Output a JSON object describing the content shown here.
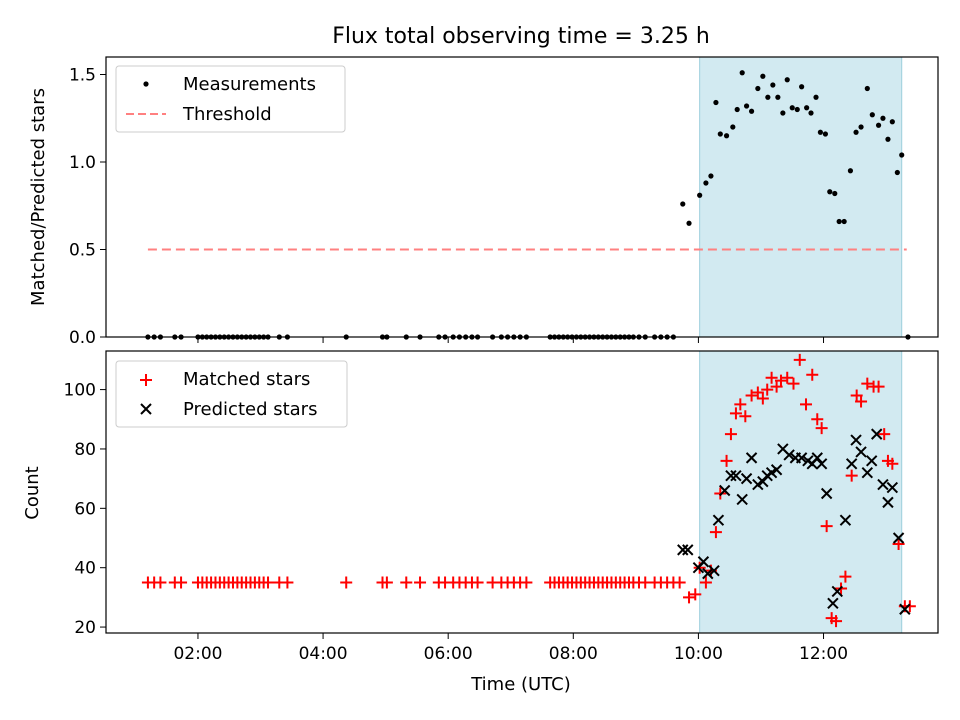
{
  "figure": {
    "title": "Flux total observing time = 3.25 h"
  },
  "chart_data": [
    {
      "type": "scatter",
      "panel": "top",
      "ylabel": "Matched/Predicted stars",
      "xlabel": "",
      "xlim": [
        0.53,
        13.83
      ],
      "ylim": [
        0,
        1.6
      ],
      "yticks": [
        0.0,
        0.5,
        1.0,
        1.5
      ],
      "ytick_labels": [
        "0.0",
        "0.5",
        "1.0",
        "1.5"
      ],
      "shaded_span": {
        "start": 10.02,
        "end": 13.25,
        "color": "#add8e6"
      },
      "legend": {
        "placement": "upper left",
        "entries": [
          "Measurements",
          "Threshold"
        ]
      },
      "threshold": {
        "name": "Threshold",
        "y": 0.5,
        "x_start": 1.2,
        "x_end": 13.33,
        "color": "#ff8080",
        "style": "dashed"
      },
      "series": [
        {
          "name": "Measurements",
          "marker": "dot",
          "color": "#000000",
          "points": [
            [
              1.2,
              0
            ],
            [
              1.3,
              0
            ],
            [
              1.4,
              0
            ],
            [
              1.63,
              0
            ],
            [
              1.73,
              0
            ],
            [
              2.0,
              0
            ],
            [
              2.07,
              0
            ],
            [
              2.14,
              0
            ],
            [
              2.21,
              0
            ],
            [
              2.28,
              0
            ],
            [
              2.35,
              0
            ],
            [
              2.42,
              0
            ],
            [
              2.49,
              0
            ],
            [
              2.56,
              0
            ],
            [
              2.63,
              0
            ],
            [
              2.7,
              0
            ],
            [
              2.77,
              0
            ],
            [
              2.84,
              0
            ],
            [
              2.91,
              0
            ],
            [
              2.98,
              0
            ],
            [
              3.05,
              0
            ],
            [
              3.12,
              0
            ],
            [
              3.3,
              0
            ],
            [
              3.43,
              0
            ],
            [
              4.37,
              0
            ],
            [
              4.95,
              0
            ],
            [
              5.02,
              0
            ],
            [
              5.33,
              0
            ],
            [
              5.55,
              0
            ],
            [
              5.85,
              0
            ],
            [
              5.95,
              0
            ],
            [
              6.08,
              0
            ],
            [
              6.18,
              0
            ],
            [
              6.28,
              0
            ],
            [
              6.38,
              0
            ],
            [
              6.47,
              0
            ],
            [
              6.71,
              0
            ],
            [
              6.85,
              0
            ],
            [
              6.95,
              0
            ],
            [
              7.05,
              0
            ],
            [
              7.15,
              0
            ],
            [
              7.25,
              0
            ],
            [
              7.63,
              0
            ],
            [
              7.7,
              0
            ],
            [
              7.77,
              0
            ],
            [
              7.84,
              0
            ],
            [
              7.91,
              0
            ],
            [
              7.98,
              0
            ],
            [
              8.05,
              0
            ],
            [
              8.12,
              0
            ],
            [
              8.19,
              0
            ],
            [
              8.26,
              0
            ],
            [
              8.33,
              0
            ],
            [
              8.4,
              0
            ],
            [
              8.47,
              0
            ],
            [
              8.54,
              0
            ],
            [
              8.61,
              0
            ],
            [
              8.68,
              0
            ],
            [
              8.75,
              0
            ],
            [
              8.82,
              0
            ],
            [
              8.89,
              0
            ],
            [
              8.96,
              0
            ],
            [
              9.05,
              0
            ],
            [
              9.15,
              0
            ],
            [
              9.3,
              0
            ],
            [
              9.4,
              0
            ],
            [
              9.5,
              0
            ],
            [
              9.6,
              0
            ],
            [
              9.75,
              0.76
            ],
            [
              9.85,
              0.65
            ],
            [
              10.02,
              0.81
            ],
            [
              10.12,
              0.88
            ],
            [
              10.2,
              0.92
            ],
            [
              10.28,
              1.34
            ],
            [
              10.35,
              1.16
            ],
            [
              10.45,
              1.15
            ],
            [
              10.55,
              1.2
            ],
            [
              10.62,
              1.3
            ],
            [
              10.7,
              1.51
            ],
            [
              10.77,
              1.32
            ],
            [
              10.85,
              1.29
            ],
            [
              10.95,
              1.42
            ],
            [
              11.03,
              1.49
            ],
            [
              11.11,
              1.37
            ],
            [
              11.19,
              1.44
            ],
            [
              11.27,
              1.37
            ],
            [
              11.35,
              1.28
            ],
            [
              11.42,
              1.47
            ],
            [
              11.5,
              1.31
            ],
            [
              11.58,
              1.3
            ],
            [
              11.65,
              1.43
            ],
            [
              11.73,
              1.31
            ],
            [
              11.8,
              1.28
            ],
            [
              11.88,
              1.37
            ],
            [
              11.95,
              1.17
            ],
            [
              12.03,
              1.16
            ],
            [
              12.1,
              0.83
            ],
            [
              12.18,
              0.82
            ],
            [
              12.25,
              0.66
            ],
            [
              12.33,
              0.66
            ],
            [
              12.43,
              0.95
            ],
            [
              12.52,
              1.17
            ],
            [
              12.6,
              1.2
            ],
            [
              12.7,
              1.42
            ],
            [
              12.78,
              1.27
            ],
            [
              12.88,
              1.21
            ],
            [
              12.95,
              1.25
            ],
            [
              13.03,
              1.13
            ],
            [
              13.1,
              1.23
            ],
            [
              13.18,
              0.94
            ],
            [
              13.25,
              1.04
            ],
            [
              13.35,
              0
            ]
          ]
        }
      ]
    },
    {
      "type": "scatter",
      "panel": "bottom",
      "ylabel": "Count",
      "xlabel": "Time (UTC)",
      "xlim": [
        0.53,
        13.83
      ],
      "ylim": [
        18,
        113
      ],
      "yticks": [
        20,
        40,
        60,
        80,
        100
      ],
      "ytick_labels": [
        "20",
        "40",
        "60",
        "80",
        "100"
      ],
      "xticks": [
        2,
        4,
        6,
        8,
        10,
        12
      ],
      "xtick_labels": [
        "02:00",
        "04:00",
        "06:00",
        "08:00",
        "10:00",
        "12:00"
      ],
      "shaded_span": {
        "start": 10.02,
        "end": 13.25,
        "color": "#add8e6"
      },
      "legend": {
        "placement": "upper left",
        "entries": [
          "Matched stars",
          "Predicted stars"
        ]
      },
      "series": [
        {
          "name": "Matched stars",
          "marker": "plus",
          "color": "#ff0000",
          "points": [
            [
              1.2,
              35
            ],
            [
              1.3,
              35
            ],
            [
              1.4,
              35
            ],
            [
              1.63,
              35
            ],
            [
              1.73,
              35
            ],
            [
              2.0,
              35
            ],
            [
              2.07,
              35
            ],
            [
              2.14,
              35
            ],
            [
              2.21,
              35
            ],
            [
              2.28,
              35
            ],
            [
              2.35,
              35
            ],
            [
              2.42,
              35
            ],
            [
              2.49,
              35
            ],
            [
              2.56,
              35
            ],
            [
              2.63,
              35
            ],
            [
              2.7,
              35
            ],
            [
              2.77,
              35
            ],
            [
              2.84,
              35
            ],
            [
              2.91,
              35
            ],
            [
              2.98,
              35
            ],
            [
              3.05,
              35
            ],
            [
              3.12,
              35
            ],
            [
              3.3,
              35
            ],
            [
              3.43,
              35
            ],
            [
              4.37,
              35
            ],
            [
              4.95,
              35
            ],
            [
              5.02,
              35
            ],
            [
              5.33,
              35
            ],
            [
              5.55,
              35
            ],
            [
              5.85,
              35
            ],
            [
              5.95,
              35
            ],
            [
              6.08,
              35
            ],
            [
              6.18,
              35
            ],
            [
              6.28,
              35
            ],
            [
              6.38,
              35
            ],
            [
              6.47,
              35
            ],
            [
              6.71,
              35
            ],
            [
              6.85,
              35
            ],
            [
              6.95,
              35
            ],
            [
              7.05,
              35
            ],
            [
              7.15,
              35
            ],
            [
              7.25,
              35
            ],
            [
              7.63,
              35
            ],
            [
              7.7,
              35
            ],
            [
              7.77,
              35
            ],
            [
              7.84,
              35
            ],
            [
              7.91,
              35
            ],
            [
              7.98,
              35
            ],
            [
              8.05,
              35
            ],
            [
              8.12,
              35
            ],
            [
              8.19,
              35
            ],
            [
              8.26,
              35
            ],
            [
              8.33,
              35
            ],
            [
              8.4,
              35
            ],
            [
              8.47,
              35
            ],
            [
              8.54,
              35
            ],
            [
              8.61,
              35
            ],
            [
              8.68,
              35
            ],
            [
              8.75,
              35
            ],
            [
              8.82,
              35
            ],
            [
              8.89,
              35
            ],
            [
              8.96,
              35
            ],
            [
              9.05,
              35
            ],
            [
              9.15,
              35
            ],
            [
              9.3,
              35
            ],
            [
              9.4,
              35
            ],
            [
              9.5,
              35
            ],
            [
              9.6,
              35
            ],
            [
              9.7,
              35
            ],
            [
              9.85,
              30
            ],
            [
              9.95,
              31
            ],
            [
              10.02,
              40
            ],
            [
              10.12,
              35
            ],
            [
              10.2,
              39
            ],
            [
              10.28,
              52
            ],
            [
              10.35,
              65
            ],
            [
              10.45,
              76
            ],
            [
              10.52,
              85
            ],
            [
              10.6,
              92
            ],
            [
              10.67,
              95
            ],
            [
              10.75,
              91
            ],
            [
              10.85,
              98
            ],
            [
              10.95,
              99
            ],
            [
              11.03,
              97
            ],
            [
              11.1,
              100
            ],
            [
              11.17,
              104
            ],
            [
              11.25,
              101
            ],
            [
              11.32,
              103
            ],
            [
              11.42,
              104
            ],
            [
              11.52,
              102
            ],
            [
              11.62,
              110
            ],
            [
              11.72,
              95
            ],
            [
              11.82,
              105
            ],
            [
              11.9,
              90
            ],
            [
              11.97,
              87
            ],
            [
              12.05,
              54
            ],
            [
              12.13,
              23
            ],
            [
              12.2,
              22
            ],
            [
              12.28,
              33
            ],
            [
              12.35,
              37
            ],
            [
              12.45,
              71
            ],
            [
              12.53,
              98
            ],
            [
              12.6,
              96
            ],
            [
              12.7,
              102
            ],
            [
              12.8,
              101
            ],
            [
              12.88,
              101
            ],
            [
              12.97,
              85
            ],
            [
              13.03,
              76
            ],
            [
              13.1,
              75
            ],
            [
              13.2,
              48
            ],
            [
              13.3,
              27
            ],
            [
              13.38,
              27
            ]
          ]
        },
        {
          "name": "Predicted stars",
          "marker": "x",
          "color": "#000000",
          "points": [
            [
              9.75,
              46
            ],
            [
              9.83,
              46
            ],
            [
              10.0,
              40
            ],
            [
              10.08,
              42
            ],
            [
              10.15,
              38
            ],
            [
              10.25,
              39
            ],
            [
              10.32,
              56
            ],
            [
              10.42,
              66
            ],
            [
              10.52,
              71
            ],
            [
              10.6,
              71
            ],
            [
              10.7,
              63
            ],
            [
              10.77,
              70
            ],
            [
              10.85,
              77
            ],
            [
              10.95,
              68
            ],
            [
              11.03,
              69
            ],
            [
              11.1,
              71
            ],
            [
              11.17,
              72
            ],
            [
              11.25,
              73
            ],
            [
              11.35,
              80
            ],
            [
              11.45,
              78
            ],
            [
              11.55,
              77
            ],
            [
              11.65,
              77
            ],
            [
              11.75,
              76
            ],
            [
              11.82,
              75
            ],
            [
              11.9,
              77
            ],
            [
              11.97,
              75
            ],
            [
              12.05,
              65
            ],
            [
              12.15,
              28
            ],
            [
              12.22,
              32
            ],
            [
              12.35,
              56
            ],
            [
              12.45,
              75
            ],
            [
              12.52,
              83
            ],
            [
              12.6,
              79
            ],
            [
              12.7,
              72
            ],
            [
              12.77,
              76
            ],
            [
              12.85,
              85
            ],
            [
              12.95,
              68
            ],
            [
              13.03,
              62
            ],
            [
              13.1,
              67
            ],
            [
              13.2,
              50
            ],
            [
              13.3,
              26
            ]
          ]
        }
      ]
    }
  ]
}
